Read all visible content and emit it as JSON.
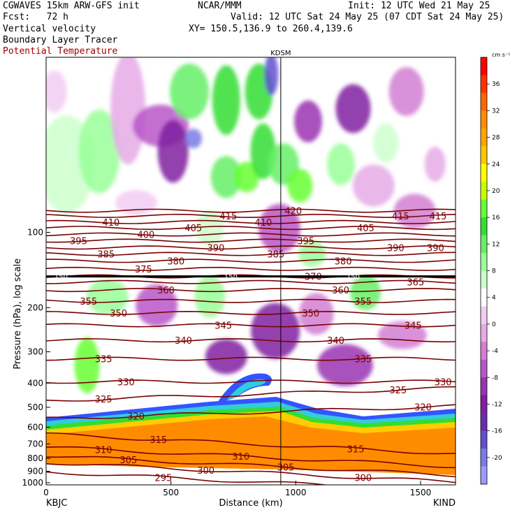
{
  "header": {
    "model": "CGWAVES 15km ARW-GFS init",
    "forecast": "Fcst:   72 h",
    "field1": "Vertical velocity",
    "field2": "Boundary Layer Tracer",
    "field3": "Potential Temperature",
    "org": "NCAR/MMM",
    "init": "Init: 12 UTC Wed 21 May 25",
    "valid": "Valid: 12 UTC Sat 24 May 25 (07 CDT Sat 24 May 25)",
    "xy": "XY= 150.5,136.9 to 260.4,139.6",
    "station_marker": "KDSM"
  },
  "colors": {
    "theta_line": "#7a0000",
    "marker_line": "#000000",
    "field3_text": "#a00000"
  },
  "chart_data": {
    "type": "heatmap",
    "xlabel": "Distance (km)",
    "ylabel": "Pressure (hPa), log scale",
    "x_ticks": [
      0,
      500,
      1000,
      1500
    ],
    "x_range": [
      0,
      1640
    ],
    "y_ticks": [
      100,
      200,
      300,
      400,
      500,
      600,
      700,
      800,
      900,
      1000
    ],
    "y_range_hpa": [
      1020,
      20
    ],
    "y_scale": "log",
    "x_end_labels": {
      "left": "KBJC",
      "right": "KIND"
    },
    "marker_x_km": 940,
    "colorbar": {
      "units": "cm s⁻¹",
      "ticks": [
        36,
        32,
        28,
        24,
        20,
        16,
        12,
        8,
        4,
        0,
        -4,
        -8,
        -12,
        -16,
        -20
      ],
      "colors": [
        "#ff0000",
        "#ff3300",
        "#ff6600",
        "#ff8c00",
        "#ffa500",
        "#ffc800",
        "#ffff00",
        "#c8ff00",
        "#66ff33",
        "#33dd33",
        "#66ee66",
        "#99ff99",
        "#ccffcc",
        "#ffffff",
        "#f2ccf2",
        "#e6aae6",
        "#d27fd2",
        "#b855c8",
        "#9a33b0",
        "#7f1fa0",
        "#6a2bb0",
        "#6050d0",
        "#7a7ae8",
        "#9a9aff"
      ]
    },
    "theta_contours": [
      {
        "value": 295,
        "label_positions_km": [
          470,
          1600
        ]
      },
      {
        "value": 300,
        "label_positions_km": [
          640,
          1270
        ]
      },
      {
        "value": 305,
        "label_positions_km": [
          330,
          960
        ]
      },
      {
        "value": 310,
        "label_positions_km": [
          230,
          780
        ]
      },
      {
        "value": 315,
        "label_positions_km": [
          450,
          1240
        ]
      },
      {
        "value": 320,
        "label_positions_km": [
          360,
          1510
        ]
      },
      {
        "value": 325,
        "label_positions_km": [
          230,
          1410
        ]
      },
      {
        "value": 330,
        "label_positions_km": [
          320,
          1590
        ]
      },
      {
        "value": 335,
        "label_positions_km": [
          230,
          1270
        ]
      },
      {
        "value": 340,
        "label_positions_km": [
          550,
          1160
        ]
      },
      {
        "value": 345,
        "label_positions_km": [
          710,
          1470
        ]
      },
      {
        "value": 350,
        "label_positions_km": [
          290,
          1060
        ]
      },
      {
        "value": 355,
        "label_positions_km": [
          170,
          1270
        ]
      },
      {
        "value": 360,
        "label_positions_km": [
          480,
          1180
        ]
      },
      {
        "value": 365,
        "label_positions_km": [
          1480
        ]
      },
      {
        "value": 370,
        "label_positions_km": [
          1070
        ]
      },
      {
        "value": 375,
        "label_positions_km": [
          390
        ]
      },
      {
        "value": 380,
        "label_positions_km": [
          520,
          1190
        ]
      },
      {
        "value": 385,
        "label_positions_km": [
          240,
          920
        ]
      },
      {
        "value": 390,
        "label_positions_km": [
          680,
          1400,
          1560
        ]
      },
      {
        "value": 395,
        "label_positions_km": [
          130,
          1040
        ]
      },
      {
        "value": 400,
        "label_positions_km": [
          400
        ]
      },
      {
        "value": 405,
        "label_positions_km": [
          590,
          1280
        ]
      },
      {
        "value": 410,
        "label_positions_km": [
          260,
          870
        ]
      },
      {
        "value": 415,
        "label_positions_km": [
          730,
          1420,
          1570
        ]
      },
      {
        "value": 420,
        "label_positions_km": [
          990
        ]
      }
    ],
    "tropopause_labels": [
      {
        "text": "150",
        "x_km": 60
      },
      {
        "text": "150",
        "x_km": 740
      },
      {
        "text": "150",
        "x_km": 1230
      }
    ]
  }
}
